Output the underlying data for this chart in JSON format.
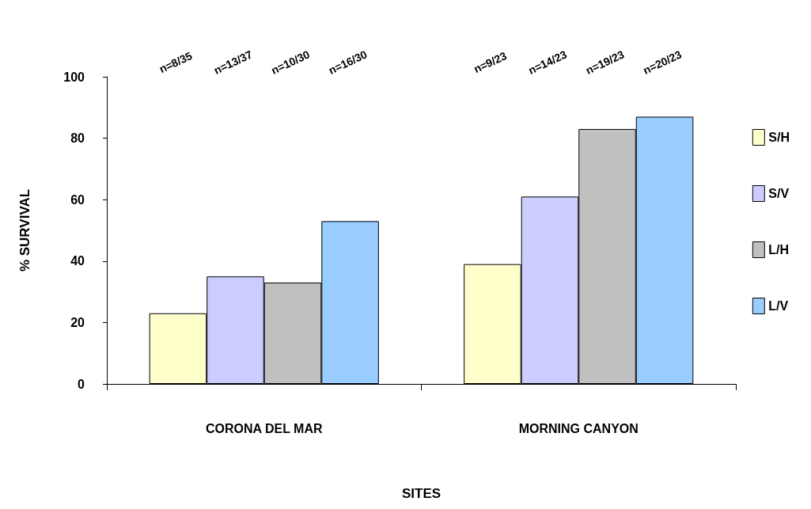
{
  "chart_data": {
    "type": "bar",
    "xlabel": "SITES",
    "ylabel": "% SURVIVAL",
    "categories": [
      "CORONA DEL MAR",
      "MORNING CANYON"
    ],
    "series": [
      {
        "name": "S/H",
        "color": "#ffffcc",
        "values": [
          23,
          39
        ]
      },
      {
        "name": "S/V",
        "color": "#ccccff",
        "values": [
          35,
          61
        ]
      },
      {
        "name": "L/H",
        "color": "#c0c0c0",
        "values": [
          33,
          83
        ]
      },
      {
        "name": "L/V",
        "color": "#99ccff",
        "values": [
          53,
          87
        ]
      }
    ],
    "annotations": [
      "n=8/35",
      "n=13/37",
      "n=10/30",
      "n=16/30",
      "n=9/23",
      "n=14/23",
      "n=19/23",
      "n=20/23"
    ],
    "ylim": [
      0,
      100
    ],
    "yticks": [
      0,
      20,
      40,
      60,
      80,
      100
    ],
    "grid": false,
    "legend": "right"
  }
}
